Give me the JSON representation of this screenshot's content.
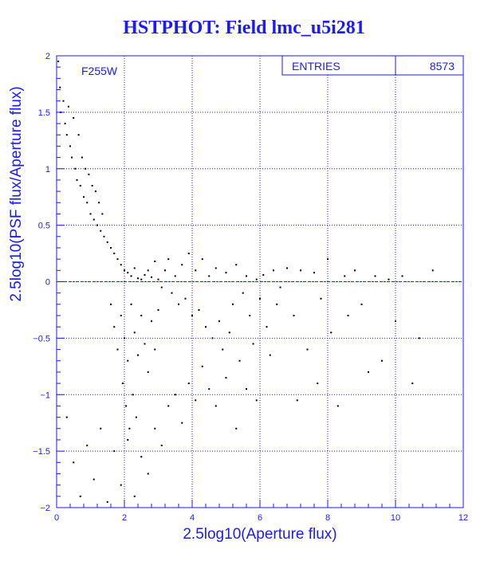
{
  "chart_data": {
    "type": "scatter",
    "title": "HSTPHOT: Field lmc_u5i281",
    "xlabel": "2.5log10(Aperture flux)",
    "ylabel": "2.5log10(PSF flux/Aperture flux)",
    "xlim": [
      0,
      12
    ],
    "ylim": [
      -2,
      2
    ],
    "x_ticks": [
      0,
      2,
      4,
      6,
      8,
      10,
      12
    ],
    "y_ticks": [
      -2,
      -1.5,
      -1,
      -0.5,
      0,
      0.5,
      1,
      1.5,
      2
    ],
    "x_tick_labels": [
      "0",
      "2",
      "4",
      "6",
      "8",
      "10",
      "12"
    ],
    "y_tick_labels": [
      "−2",
      "−1.5",
      "−1",
      "−0.5",
      "0",
      "0.5",
      "1",
      "1.5",
      "2"
    ],
    "grid": true,
    "reference_line": {
      "y": 0,
      "color": "#cc0000"
    },
    "filter_label": "F255W",
    "stats": {
      "label": "ENTRIES",
      "value": "8573"
    },
    "point_color": "#000000",
    "series": [
      {
        "points": [
          [
            0.05,
            1.95
          ],
          [
            0.1,
            1.72
          ],
          [
            0.12,
            1.5
          ],
          [
            0.2,
            1.6
          ],
          [
            0.25,
            1.4
          ],
          [
            0.3,
            1.3
          ],
          [
            0.35,
            1.55
          ],
          [
            0.4,
            1.2
          ],
          [
            0.45,
            1.1
          ],
          [
            0.5,
            1.45
          ],
          [
            0.55,
            1.0
          ],
          [
            0.6,
            0.9
          ],
          [
            0.65,
            1.3
          ],
          [
            0.7,
            0.85
          ],
          [
            0.75,
            1.1
          ],
          [
            0.8,
            0.75
          ],
          [
            0.85,
            1.0
          ],
          [
            0.9,
            0.7
          ],
          [
            0.95,
            0.95
          ],
          [
            1.0,
            0.6
          ],
          [
            1.05,
            0.85
          ],
          [
            1.1,
            0.55
          ],
          [
            1.15,
            0.8
          ],
          [
            1.2,
            0.5
          ],
          [
            1.25,
            0.7
          ],
          [
            1.3,
            0.45
          ],
          [
            1.35,
            0.6
          ],
          [
            1.4,
            0.4
          ],
          [
            1.5,
            0.35
          ],
          [
            1.6,
            0.3
          ],
          [
            1.7,
            0.25
          ],
          [
            1.8,
            0.2
          ],
          [
            1.9,
            0.15
          ],
          [
            2.0,
            0.1
          ],
          [
            2.1,
            0.08
          ],
          [
            2.2,
            0.05
          ],
          [
            2.3,
            0.12
          ],
          [
            2.4,
            0.03
          ],
          [
            2.5,
            0.02
          ],
          [
            2.6,
            0.06
          ],
          [
            2.7,
            0.1
          ],
          [
            2.8,
            0.04
          ],
          [
            2.9,
            0.18
          ],
          [
            3.0,
            0.02
          ],
          [
            3.1,
            -0.05
          ],
          [
            3.2,
            0.1
          ],
          [
            3.3,
            0.2
          ],
          [
            3.4,
            -0.1
          ],
          [
            3.5,
            0.05
          ],
          [
            3.6,
            -0.2
          ],
          [
            3.7,
            0.15
          ],
          [
            3.8,
            -0.15
          ],
          [
            3.9,
            0.25
          ],
          [
            4.0,
            -0.3
          ],
          [
            4.1,
            0.1
          ],
          [
            4.2,
            -0.25
          ],
          [
            4.3,
            0.2
          ],
          [
            4.4,
            -0.4
          ],
          [
            4.5,
            0.05
          ],
          [
            4.6,
            -0.5
          ],
          [
            4.7,
            0.12
          ],
          [
            4.8,
            -0.35
          ],
          [
            4.9,
            -0.6
          ],
          [
            5.0,
            0.08
          ],
          [
            5.1,
            -0.45
          ],
          [
            5.2,
            -0.2
          ],
          [
            5.3,
            0.15
          ],
          [
            5.4,
            -0.7
          ],
          [
            5.5,
            -0.1
          ],
          [
            5.6,
            0.05
          ],
          [
            5.7,
            -0.3
          ],
          [
            5.8,
            -0.55
          ],
          [
            5.9,
            0.02
          ],
          [
            6.0,
            -0.15
          ],
          [
            6.1,
            0.06
          ],
          [
            6.2,
            -0.4
          ],
          [
            6.3,
            -0.65
          ],
          [
            6.4,
            0.1
          ],
          [
            6.5,
            -0.2
          ],
          [
            6.6,
            -0.05
          ],
          [
            6.8,
            0.12
          ],
          [
            7.0,
            -0.3
          ],
          [
            7.1,
            -1.05
          ],
          [
            7.2,
            0.1
          ],
          [
            7.4,
            -0.6
          ],
          [
            7.6,
            0.08
          ],
          [
            7.7,
            -0.9
          ],
          [
            7.8,
            -0.15
          ],
          [
            8.0,
            0.2
          ],
          [
            8.1,
            -0.45
          ],
          [
            8.3,
            -1.1
          ],
          [
            8.5,
            0.05
          ],
          [
            8.6,
            -0.3
          ],
          [
            8.8,
            0.1
          ],
          [
            9.0,
            -0.2
          ],
          [
            9.2,
            -0.8
          ],
          [
            9.4,
            0.05
          ],
          [
            9.6,
            -0.7
          ],
          [
            9.8,
            0.02
          ],
          [
            10.0,
            -0.35
          ],
          [
            10.2,
            0.05
          ],
          [
            10.5,
            -0.9
          ],
          [
            10.7,
            -0.5
          ],
          [
            11.1,
            0.1
          ],
          [
            0.3,
            -1.2
          ],
          [
            0.5,
            -1.6
          ],
          [
            0.7,
            -1.9
          ],
          [
            0.9,
            -1.45
          ],
          [
            1.1,
            -1.75
          ],
          [
            1.3,
            -1.3
          ],
          [
            1.5,
            -1.95
          ],
          [
            1.7,
            -1.5
          ],
          [
            1.9,
            -1.8
          ],
          [
            2.1,
            -1.4
          ],
          [
            2.3,
            -1.9
          ],
          [
            2.5,
            -1.55
          ],
          [
            2.7,
            -1.7
          ],
          [
            2.9,
            -1.3
          ],
          [
            3.1,
            -1.45
          ],
          [
            3.3,
            -1.1
          ],
          [
            3.5,
            -1.0
          ],
          [
            3.7,
            -1.25
          ],
          [
            3.9,
            -0.9
          ],
          [
            4.1,
            -1.05
          ],
          [
            4.3,
            -0.75
          ],
          [
            4.5,
            -0.95
          ],
          [
            4.7,
            -1.1
          ],
          [
            5.0,
            -0.85
          ],
          [
            5.3,
            -1.3
          ],
          [
            5.6,
            -0.95
          ],
          [
            5.9,
            -1.05
          ],
          [
            1.6,
            -0.2
          ],
          [
            1.7,
            -0.4
          ],
          [
            1.8,
            -0.6
          ],
          [
            1.9,
            -0.3
          ],
          [
            2.0,
            -0.5
          ],
          [
            2.1,
            -0.7
          ],
          [
            2.2,
            -0.2
          ],
          [
            2.3,
            -0.45
          ],
          [
            2.4,
            -0.65
          ],
          [
            2.5,
            -0.3
          ],
          [
            2.6,
            -0.55
          ],
          [
            2.7,
            -0.8
          ],
          [
            2.8,
            -0.35
          ],
          [
            2.9,
            -0.6
          ],
          [
            3.0,
            -0.25
          ],
          [
            1.95,
            -0.9
          ],
          [
            2.05,
            -1.1
          ],
          [
            2.15,
            -1.3
          ],
          [
            2.25,
            -1.0
          ],
          [
            2.35,
            -1.2
          ]
        ]
      }
    ]
  }
}
